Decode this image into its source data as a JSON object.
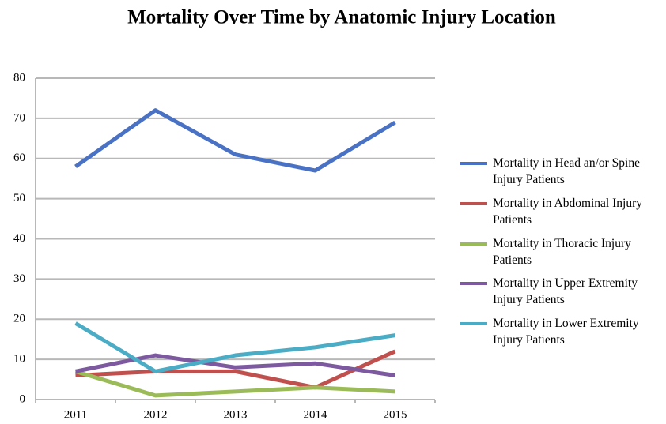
{
  "chart_data": {
    "type": "line",
    "title": "Mortality Over Time by Anatomic Injury Location",
    "categories": [
      "2011",
      "2012",
      "2013",
      "2014",
      "2015"
    ],
    "series": [
      {
        "name": "Mortality in Head an/or Spine Injury Patients",
        "color": "#4a72c4",
        "values": [
          58,
          72,
          61,
          57,
          69
        ]
      },
      {
        "name": "Mortality in Abdominal Injury Patients",
        "color": "#c0504d",
        "values": [
          6,
          7,
          7,
          3,
          12
        ]
      },
      {
        "name": "Mortality in Thoracic Injury Patients",
        "color": "#9bbb59",
        "values": [
          7,
          1,
          2,
          3,
          2
        ]
      },
      {
        "name": "Mortality in Upper Extremity Injury Patients",
        "color": "#7d5aa0",
        "values": [
          7,
          11,
          8,
          9,
          6
        ]
      },
      {
        "name": "Mortality in Lower Extremity Injury Patients",
        "color": "#4bacc6",
        "values": [
          19,
          7,
          11,
          13,
          16
        ]
      }
    ],
    "ylim": [
      0,
      80
    ],
    "yticks": [
      0,
      10,
      20,
      30,
      40,
      50,
      60,
      70,
      80
    ],
    "grid": true
  }
}
